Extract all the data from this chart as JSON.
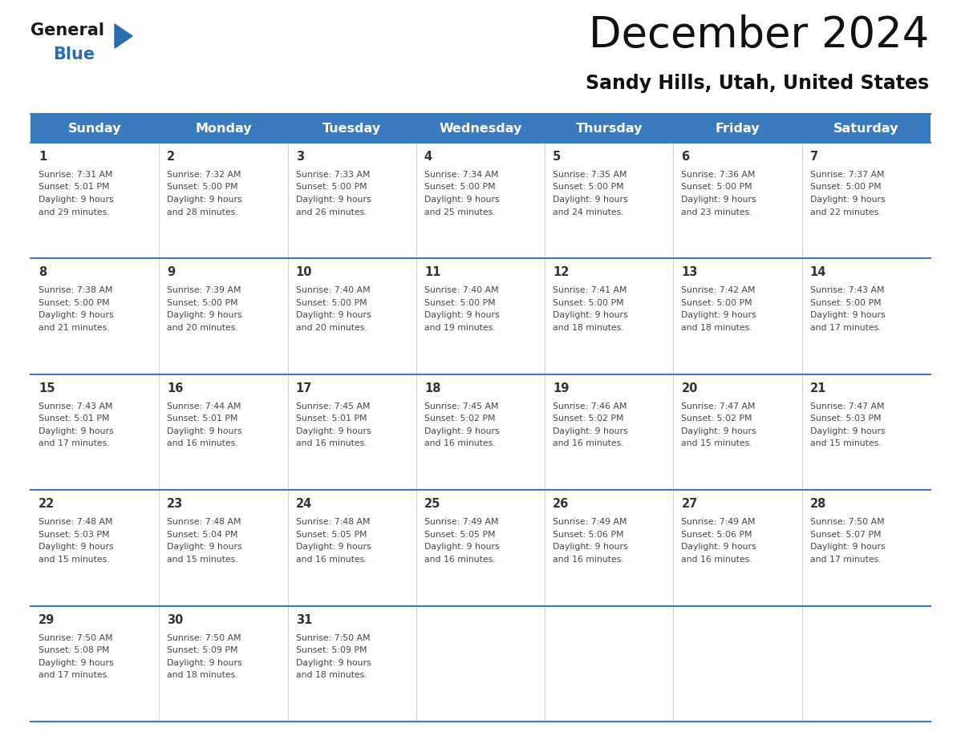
{
  "title": "December 2024",
  "subtitle": "Sandy Hills, Utah, United States",
  "header_color": "#3a7abf",
  "header_text_color": "#ffffff",
  "days_of_week": [
    "Sunday",
    "Monday",
    "Tuesday",
    "Wednesday",
    "Thursday",
    "Friday",
    "Saturday"
  ],
  "row_sep_color": "#3a7abf",
  "text_color": "#444444",
  "day_num_color": "#333333",
  "calendar_data": [
    [
      {
        "day": 1,
        "sunrise": "7:31 AM",
        "sunset": "5:01 PM",
        "daylight_hours": 9,
        "daylight_minutes": 29
      },
      {
        "day": 2,
        "sunrise": "7:32 AM",
        "sunset": "5:00 PM",
        "daylight_hours": 9,
        "daylight_minutes": 28
      },
      {
        "day": 3,
        "sunrise": "7:33 AM",
        "sunset": "5:00 PM",
        "daylight_hours": 9,
        "daylight_minutes": 26
      },
      {
        "day": 4,
        "sunrise": "7:34 AM",
        "sunset": "5:00 PM",
        "daylight_hours": 9,
        "daylight_minutes": 25
      },
      {
        "day": 5,
        "sunrise": "7:35 AM",
        "sunset": "5:00 PM",
        "daylight_hours": 9,
        "daylight_minutes": 24
      },
      {
        "day": 6,
        "sunrise": "7:36 AM",
        "sunset": "5:00 PM",
        "daylight_hours": 9,
        "daylight_minutes": 23
      },
      {
        "day": 7,
        "sunrise": "7:37 AM",
        "sunset": "5:00 PM",
        "daylight_hours": 9,
        "daylight_minutes": 22
      }
    ],
    [
      {
        "day": 8,
        "sunrise": "7:38 AM",
        "sunset": "5:00 PM",
        "daylight_hours": 9,
        "daylight_minutes": 21
      },
      {
        "day": 9,
        "sunrise": "7:39 AM",
        "sunset": "5:00 PM",
        "daylight_hours": 9,
        "daylight_minutes": 20
      },
      {
        "day": 10,
        "sunrise": "7:40 AM",
        "sunset": "5:00 PM",
        "daylight_hours": 9,
        "daylight_minutes": 20
      },
      {
        "day": 11,
        "sunrise": "7:40 AM",
        "sunset": "5:00 PM",
        "daylight_hours": 9,
        "daylight_minutes": 19
      },
      {
        "day": 12,
        "sunrise": "7:41 AM",
        "sunset": "5:00 PM",
        "daylight_hours": 9,
        "daylight_minutes": 18
      },
      {
        "day": 13,
        "sunrise": "7:42 AM",
        "sunset": "5:00 PM",
        "daylight_hours": 9,
        "daylight_minutes": 18
      },
      {
        "day": 14,
        "sunrise": "7:43 AM",
        "sunset": "5:00 PM",
        "daylight_hours": 9,
        "daylight_minutes": 17
      }
    ],
    [
      {
        "day": 15,
        "sunrise": "7:43 AM",
        "sunset": "5:01 PM",
        "daylight_hours": 9,
        "daylight_minutes": 17
      },
      {
        "day": 16,
        "sunrise": "7:44 AM",
        "sunset": "5:01 PM",
        "daylight_hours": 9,
        "daylight_minutes": 16
      },
      {
        "day": 17,
        "sunrise": "7:45 AM",
        "sunset": "5:01 PM",
        "daylight_hours": 9,
        "daylight_minutes": 16
      },
      {
        "day": 18,
        "sunrise": "7:45 AM",
        "sunset": "5:02 PM",
        "daylight_hours": 9,
        "daylight_minutes": 16
      },
      {
        "day": 19,
        "sunrise": "7:46 AM",
        "sunset": "5:02 PM",
        "daylight_hours": 9,
        "daylight_minutes": 16
      },
      {
        "day": 20,
        "sunrise": "7:47 AM",
        "sunset": "5:02 PM",
        "daylight_hours": 9,
        "daylight_minutes": 15
      },
      {
        "day": 21,
        "sunrise": "7:47 AM",
        "sunset": "5:03 PM",
        "daylight_hours": 9,
        "daylight_minutes": 15
      }
    ],
    [
      {
        "day": 22,
        "sunrise": "7:48 AM",
        "sunset": "5:03 PM",
        "daylight_hours": 9,
        "daylight_minutes": 15
      },
      {
        "day": 23,
        "sunrise": "7:48 AM",
        "sunset": "5:04 PM",
        "daylight_hours": 9,
        "daylight_minutes": 15
      },
      {
        "day": 24,
        "sunrise": "7:48 AM",
        "sunset": "5:05 PM",
        "daylight_hours": 9,
        "daylight_minutes": 16
      },
      {
        "day": 25,
        "sunrise": "7:49 AM",
        "sunset": "5:05 PM",
        "daylight_hours": 9,
        "daylight_minutes": 16
      },
      {
        "day": 26,
        "sunrise": "7:49 AM",
        "sunset": "5:06 PM",
        "daylight_hours": 9,
        "daylight_minutes": 16
      },
      {
        "day": 27,
        "sunrise": "7:49 AM",
        "sunset": "5:06 PM",
        "daylight_hours": 9,
        "daylight_minutes": 16
      },
      {
        "day": 28,
        "sunrise": "7:50 AM",
        "sunset": "5:07 PM",
        "daylight_hours": 9,
        "daylight_minutes": 17
      }
    ],
    [
      {
        "day": 29,
        "sunrise": "7:50 AM",
        "sunset": "5:08 PM",
        "daylight_hours": 9,
        "daylight_minutes": 17
      },
      {
        "day": 30,
        "sunrise": "7:50 AM",
        "sunset": "5:09 PM",
        "daylight_hours": 9,
        "daylight_minutes": 18
      },
      {
        "day": 31,
        "sunrise": "7:50 AM",
        "sunset": "5:09 PM",
        "daylight_hours": 9,
        "daylight_minutes": 18
      },
      null,
      null,
      null,
      null
    ]
  ],
  "logo_text_general": "General",
  "logo_text_blue": "Blue",
  "logo_general_color": "#1a1a1a",
  "logo_blue_color": "#2b6cb0"
}
